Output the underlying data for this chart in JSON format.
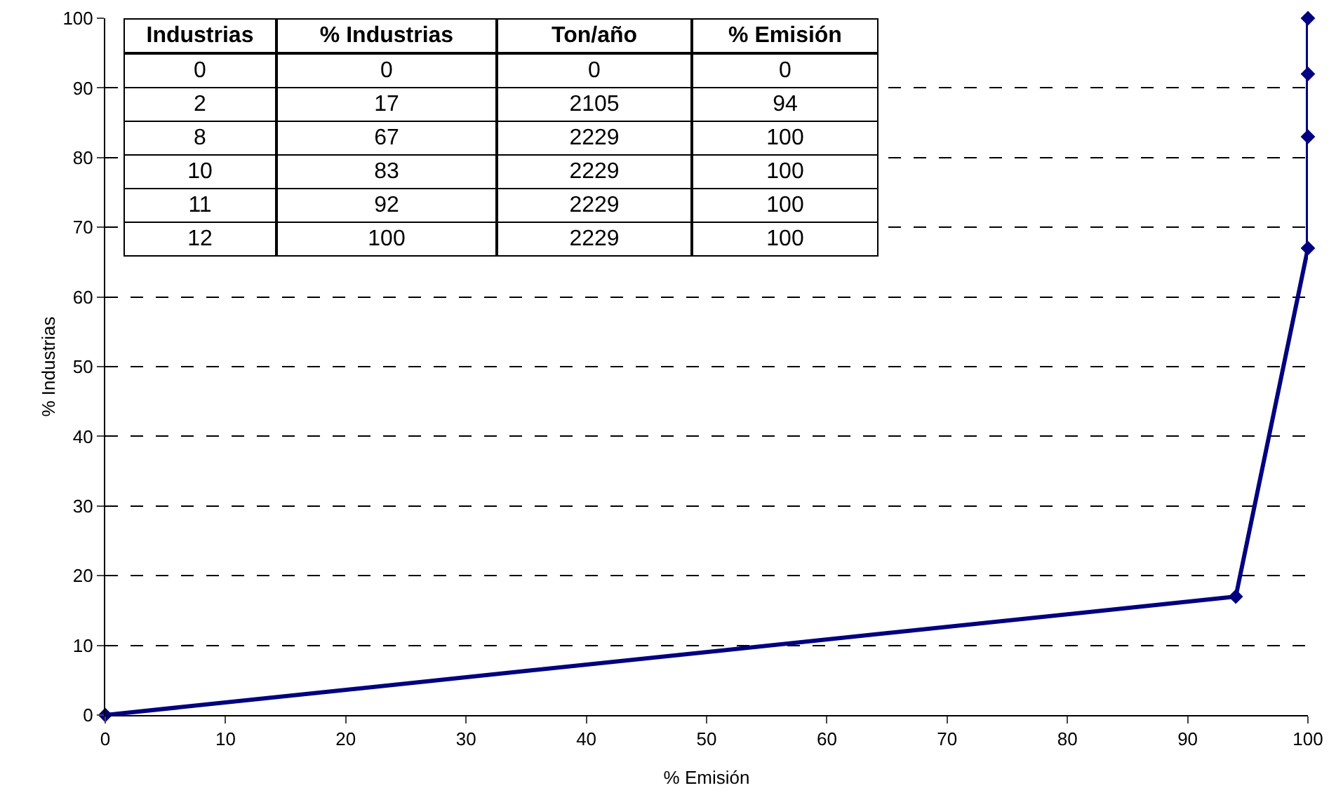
{
  "chart_data": [
    {
      "type": "line",
      "xlabel": "% Emisión",
      "ylabel": "% Industrias",
      "x": [
        0,
        94,
        100,
        100,
        100,
        100
      ],
      "series": [
        {
          "color": "#000080",
          "values": [
            0,
            17,
            67,
            83,
            92,
            100
          ]
        }
      ],
      "xlim": [
        0,
        100
      ],
      "ylim": [
        0,
        100
      ],
      "xticks": [
        0,
        10,
        20,
        30,
        40,
        50,
        60,
        70,
        80,
        90,
        100
      ],
      "yticks": [
        0,
        10,
        20,
        30,
        40,
        50,
        60,
        70,
        80,
        90,
        100
      ],
      "grid": "y",
      "marker": "diamond",
      "line_style": "solid"
    },
    {
      "type": "other",
      "categories": [
        "Industrias",
        "% Industrias",
        "Ton/año",
        "% Emisión"
      ],
      "annotations": [
        "0",
        "0",
        "0",
        "0",
        "2",
        "17",
        "2105",
        "94",
        "8",
        "67",
        "2229",
        "100",
        "10",
        "83",
        "2229",
        "100",
        "11",
        "92",
        "2229",
        "100",
        "12",
        "100",
        "2229",
        "100"
      ]
    }
  ]
}
